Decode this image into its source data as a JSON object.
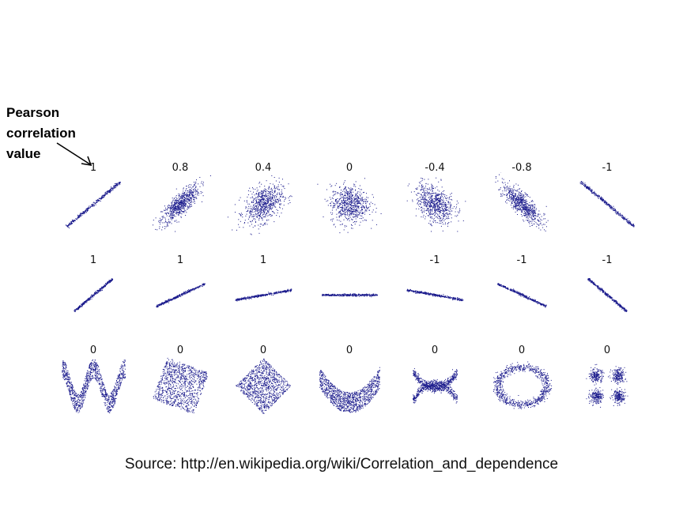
{
  "annotation": {
    "lines": [
      "Pearson",
      "correlation",
      "value"
    ]
  },
  "rows": [
    {
      "labels": [
        "1",
        "0.8",
        "0.4",
        "0",
        "-0.4",
        "-0.8",
        "-1"
      ],
      "shapes": [
        "line-pos",
        "ellipse-pos-0.8",
        "ellipse-pos-0.4",
        "blob",
        "ellipse-neg-0.4",
        "ellipse-neg-0.8",
        "line-neg"
      ]
    },
    {
      "labels": [
        "1",
        "1",
        "1",
        "",
        "-1",
        "-1",
        "-1"
      ],
      "shapes": [
        "line-steep-pos",
        "line-mid-pos",
        "line-shallow-pos",
        "line-flat",
        "line-shallow-neg",
        "line-mid-neg",
        "line-steep-neg"
      ]
    },
    {
      "labels": [
        "0",
        "0",
        "0",
        "0",
        "0",
        "0",
        "0"
      ],
      "shapes": [
        "wave",
        "rotated-square",
        "diamond",
        "parabola",
        "cross",
        "ring",
        "four-clusters"
      ]
    }
  ],
  "source": "Source: http://en.wikipedia.org/wiki/Correlation_and_dependence",
  "colors": {
    "points": "#1a1a8c",
    "text": "#111111"
  }
}
